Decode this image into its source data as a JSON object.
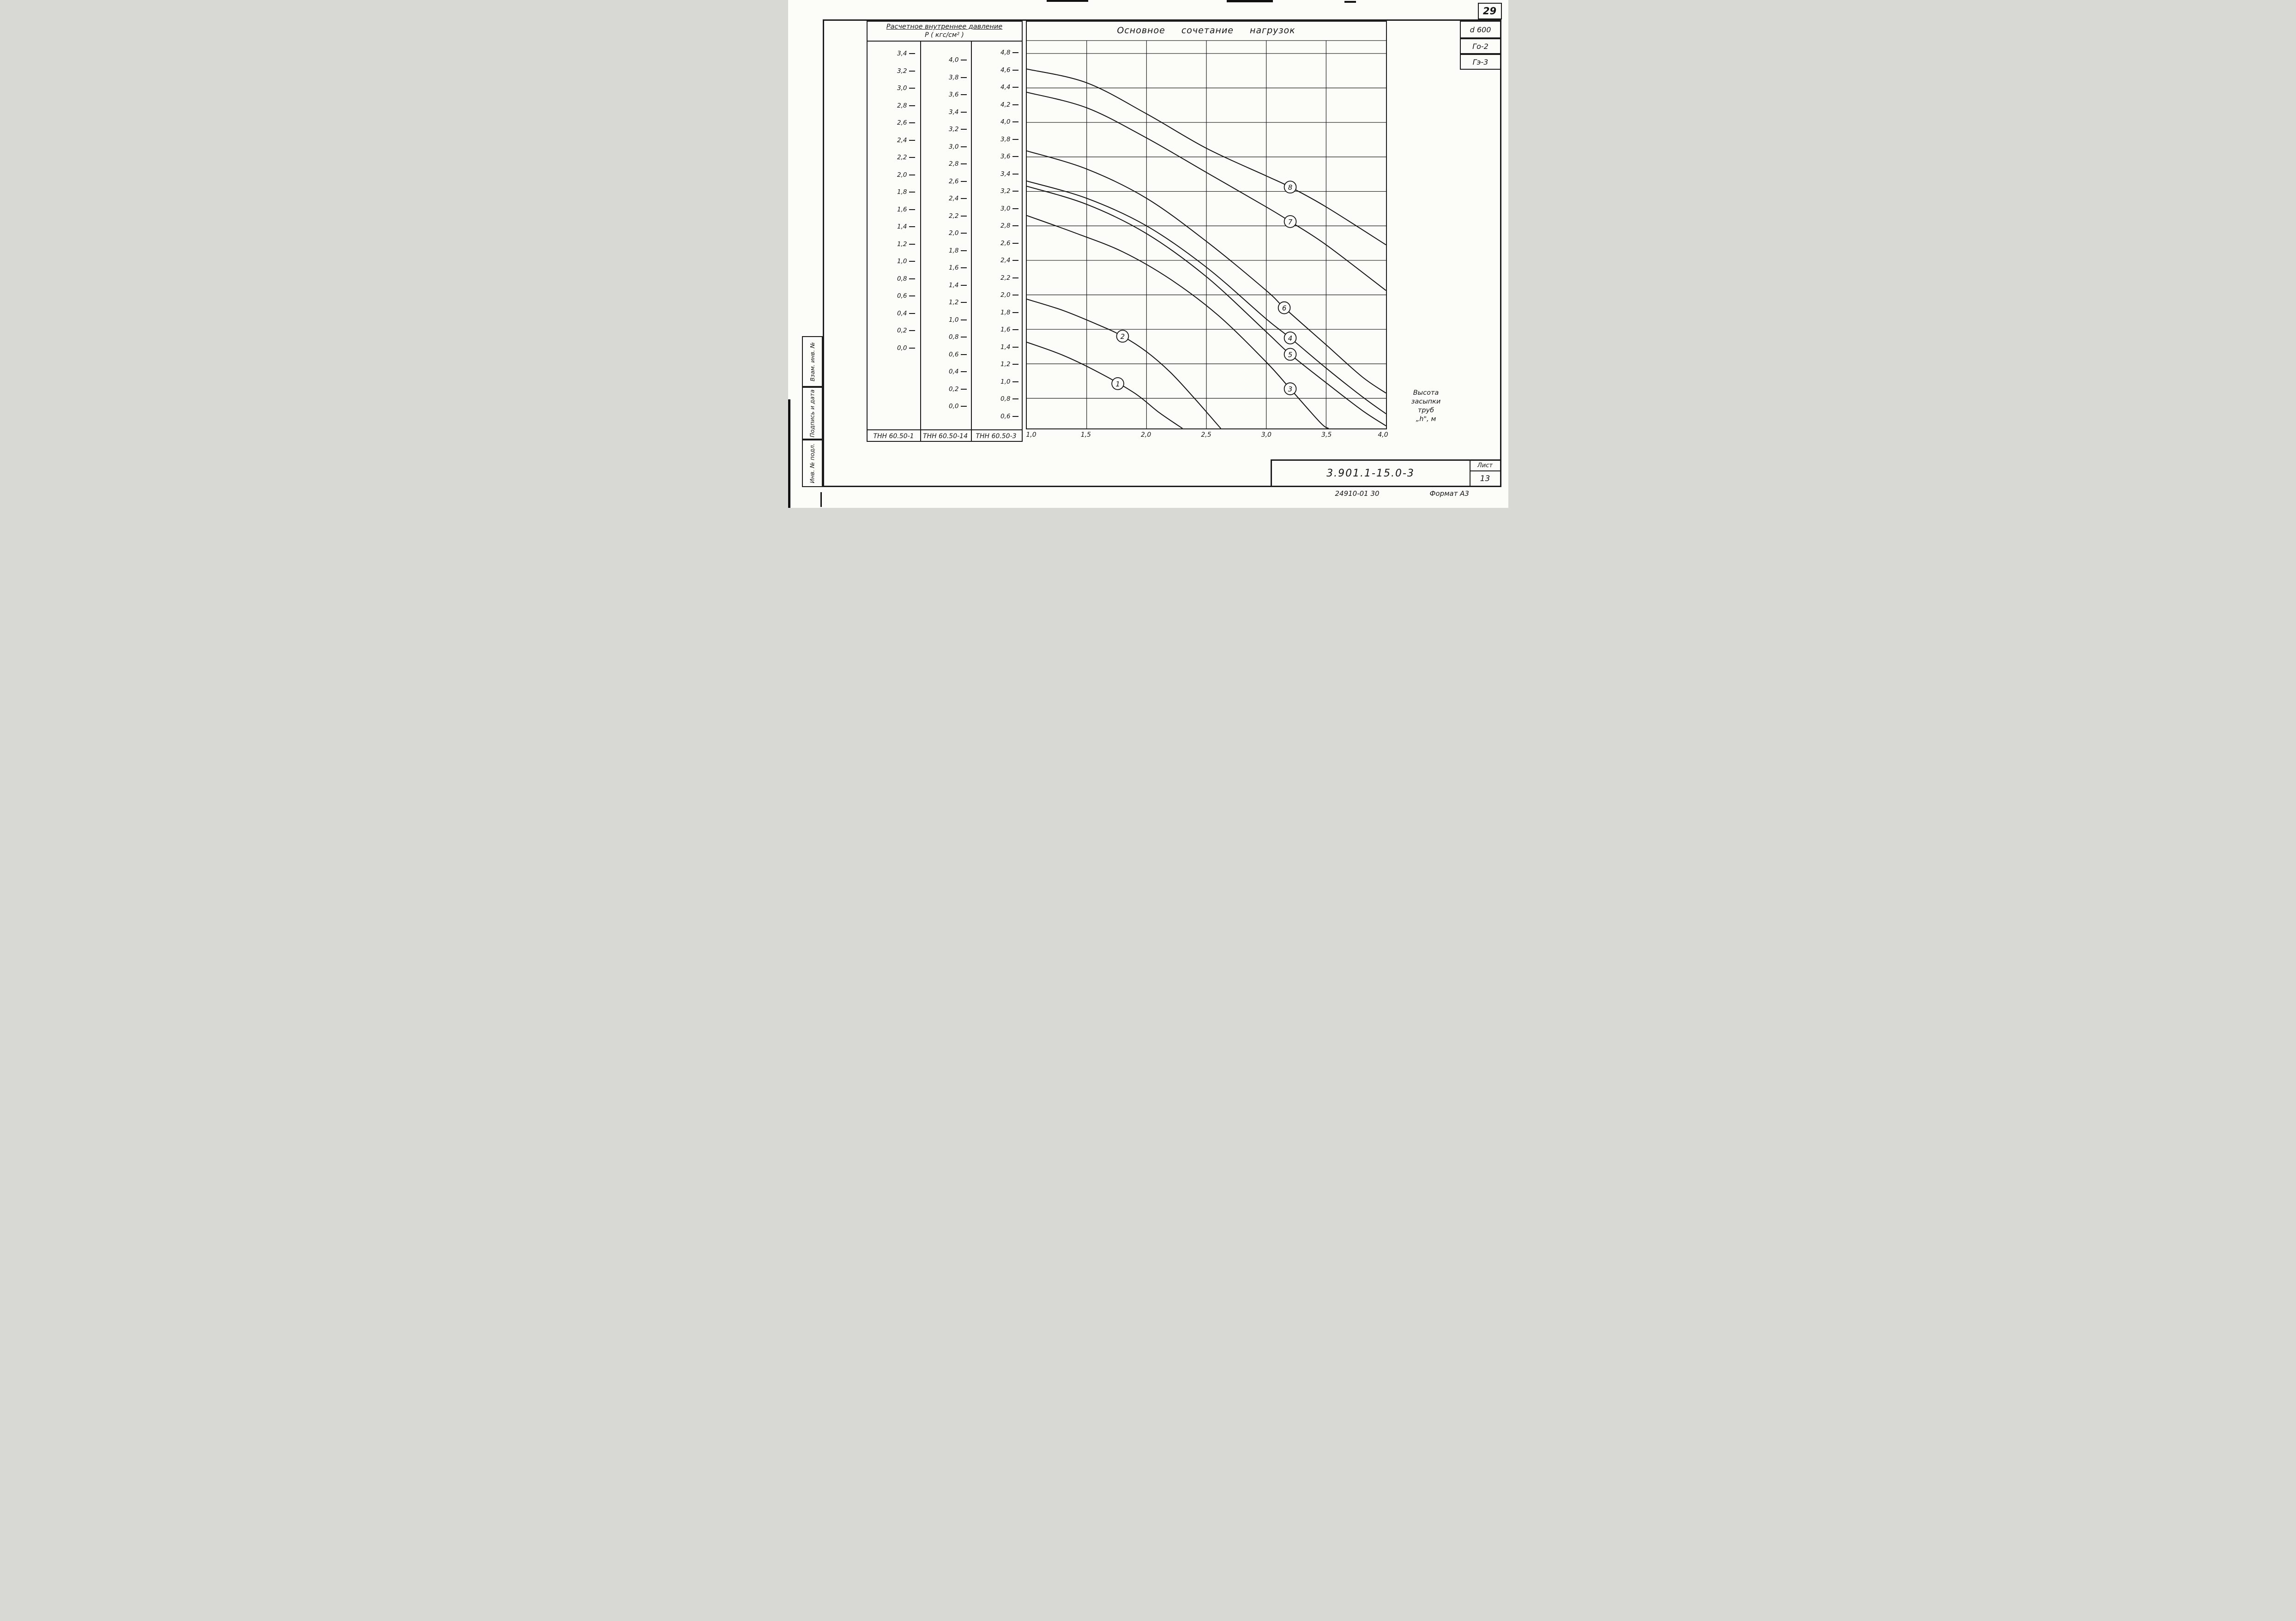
{
  "page": {
    "number": "29",
    "doc_number": "3.901.1-15.0-3",
    "sheet_label": "Лист",
    "sheet_number": "13",
    "footer_code": "24910-01   30",
    "format_label": "Формат А3"
  },
  "stamp_column": {
    "boxes": [
      "Взам. инв. №",
      "Подпись и дата",
      "Инв. № подл."
    ]
  },
  "right_tags": [
    "d 600",
    "Го-2",
    "Гэ-3"
  ],
  "pressure_panel": {
    "title_line1": "Расчетное  внутреннее  давление",
    "title_line2": "Р ( кгс/см² )",
    "columns": [
      {
        "name": "ТНН 60.50-1",
        "ticks": [
          "3,4",
          "3,2",
          "3,0",
          "2,8",
          "2,6",
          "2,4",
          "2,2",
          "2,0",
          "1,8",
          "1,6",
          "1,4",
          "1,2",
          "1,0",
          "0,8",
          "0,6",
          "0,4",
          "0,2",
          "0,0"
        ]
      },
      {
        "name": "ТНН 60.50-14",
        "ticks": [
          "4,0",
          "3,8",
          "3,6",
          "3,4",
          "3,2",
          "3,0",
          "2,8",
          "2,6",
          "2,4",
          "2,2",
          "2,0",
          "1,8",
          "1,6",
          "1,4",
          "1,2",
          "1,0",
          "0,8",
          "0,6",
          "0,4",
          "0,2",
          "0,0"
        ]
      },
      {
        "name": "ТНН 60.50-3",
        "ticks": [
          "4,8",
          "4,6",
          "4,4",
          "4,2",
          "4,0",
          "3,8",
          "3,6",
          "3,4",
          "3,2",
          "3,0",
          "2,8",
          "2,6",
          "2,4",
          "2,2",
          "2,0",
          "1,8",
          "1,6",
          "1,4",
          "1,2",
          "1,0",
          "0,8",
          "0,6"
        ]
      }
    ]
  },
  "chart_data": {
    "type": "line",
    "title": "Основное сочетание нагрузок",
    "xlabel_lines": [
      "Высота",
      "засыпки",
      "труб",
      "„h\", м"
    ],
    "x_range": [
      1.0,
      4.0
    ],
    "y_display_range": [
      0.45,
      4.95
    ],
    "x_ticks": [
      {
        "value": 1.0,
        "label": "1,0"
      },
      {
        "value": 1.5,
        "label": "1,5"
      },
      {
        "value": 2.0,
        "label": "2,0"
      },
      {
        "value": 2.5,
        "label": "2,5"
      },
      {
        "value": 3.0,
        "label": "3,0"
      },
      {
        "value": 3.5,
        "label": "3,5"
      },
      {
        "value": 4.0,
        "label": "4,0"
      }
    ],
    "y_gridlines": [
      4.8,
      4.4,
      4.0,
      3.6,
      3.2,
      2.8,
      2.4,
      2.0,
      1.6,
      1.2,
      0.8
    ],
    "x_gridlines": [
      1.5,
      2.0,
      2.5,
      3.0,
      3.5
    ],
    "series": [
      {
        "name": "1",
        "label_at": [
          1.76,
          0.97
        ],
        "points": [
          [
            1.0,
            1.45
          ],
          [
            1.3,
            1.3
          ],
          [
            1.6,
            1.1
          ],
          [
            1.9,
            0.86
          ],
          [
            2.1,
            0.64
          ],
          [
            2.3,
            0.45
          ]
        ]
      },
      {
        "name": "2",
        "label_at": [
          1.8,
          1.52
        ],
        "points": [
          [
            1.0,
            1.95
          ],
          [
            1.3,
            1.82
          ],
          [
            1.6,
            1.65
          ],
          [
            1.8,
            1.52
          ],
          [
            2.0,
            1.34
          ],
          [
            2.2,
            1.1
          ],
          [
            2.4,
            0.8
          ],
          [
            2.62,
            0.45
          ]
        ]
      },
      {
        "name": "3",
        "label_at": [
          3.2,
          0.91
        ],
        "points": [
          [
            1.0,
            2.92
          ],
          [
            1.4,
            2.72
          ],
          [
            1.8,
            2.5
          ],
          [
            2.2,
            2.18
          ],
          [
            2.6,
            1.76
          ],
          [
            3.0,
            1.22
          ],
          [
            3.2,
            0.91
          ],
          [
            3.45,
            0.52
          ],
          [
            3.52,
            0.45
          ]
        ]
      },
      {
        "name": "4",
        "label_at": [
          3.2,
          1.5
        ],
        "points": [
          [
            1.0,
            3.32
          ],
          [
            1.5,
            3.12
          ],
          [
            2.0,
            2.8
          ],
          [
            2.5,
            2.32
          ],
          [
            3.0,
            1.72
          ],
          [
            3.2,
            1.5
          ],
          [
            3.5,
            1.15
          ],
          [
            3.8,
            0.82
          ],
          [
            4.0,
            0.62
          ]
        ]
      },
      {
        "name": "5",
        "label_at": [
          3.2,
          1.31
        ],
        "points": [
          [
            1.0,
            3.26
          ],
          [
            1.5,
            3.05
          ],
          [
            2.0,
            2.71
          ],
          [
            2.5,
            2.21
          ],
          [
            3.0,
            1.57
          ],
          [
            3.2,
            1.31
          ],
          [
            3.5,
            0.98
          ],
          [
            3.8,
            0.66
          ],
          [
            4.0,
            0.48
          ]
        ]
      },
      {
        "name": "6",
        "label_at": [
          3.15,
          1.85
        ],
        "points": [
          [
            1.0,
            3.67
          ],
          [
            1.5,
            3.46
          ],
          [
            2.0,
            3.12
          ],
          [
            2.5,
            2.62
          ],
          [
            3.0,
            2.05
          ],
          [
            3.15,
            1.85
          ],
          [
            3.5,
            1.42
          ],
          [
            3.8,
            1.05
          ],
          [
            4.0,
            0.86
          ]
        ]
      },
      {
        "name": "7",
        "label_at": [
          3.2,
          2.85
        ],
        "points": [
          [
            1.0,
            4.35
          ],
          [
            1.5,
            4.17
          ],
          [
            2.0,
            3.82
          ],
          [
            2.5,
            3.42
          ],
          [
            3.0,
            3.02
          ],
          [
            3.2,
            2.85
          ],
          [
            3.5,
            2.58
          ],
          [
            4.0,
            2.05
          ]
        ]
      },
      {
        "name": "8",
        "label_at": [
          3.2,
          3.25
        ],
        "points": [
          [
            1.0,
            4.62
          ],
          [
            1.5,
            4.46
          ],
          [
            2.0,
            4.1
          ],
          [
            2.5,
            3.7
          ],
          [
            3.0,
            3.38
          ],
          [
            3.2,
            3.25
          ],
          [
            3.5,
            3.02
          ],
          [
            4.0,
            2.58
          ]
        ]
      }
    ]
  }
}
